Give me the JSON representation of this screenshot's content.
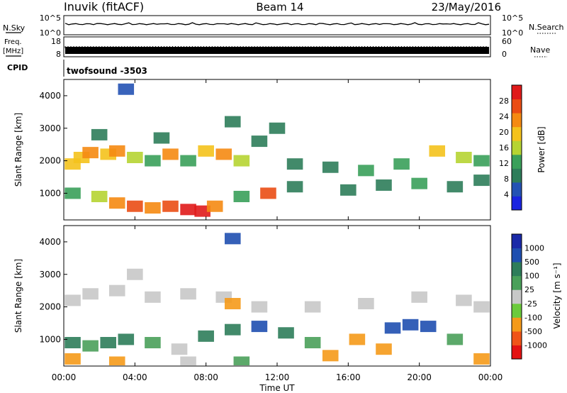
{
  "header": {
    "station": "Inuvik (fitACF)",
    "beam": "Beam 14",
    "date": "23/May/2016"
  },
  "summary": {
    "nsky": {
      "label": "N.Sky",
      "ticks": [
        "10^5",
        "10^0"
      ]
    },
    "nsearch": {
      "label": "N.Search",
      "ticks": [
        "10^5",
        "10^0"
      ]
    },
    "freq": {
      "label_line1": "Freq.",
      "label_line2": "[MHz]",
      "ticks": [
        "18",
        "8"
      ]
    },
    "nave": {
      "label": "Nave",
      "ticks": [
        "60",
        "0"
      ]
    },
    "cpid": {
      "label": "CPID",
      "value": "twofsound -3503"
    }
  },
  "colors": {
    "power_scale": [
      "#1a24e0",
      "#2452b4",
      "#2e7d5a",
      "#3aa05a",
      "#b6d432",
      "#f4c21c",
      "#f58a12",
      "#ea4d14",
      "#e01a1a"
    ],
    "velocity_scale": [
      "#e41212",
      "#f05418",
      "#f59a1a",
      "#6ccb3c",
      "#c8c8c8",
      "#4aa05a",
      "#2e7d5a",
      "#1f4fb0",
      "#1a2aa8"
    ]
  },
  "chart_data": [
    {
      "type": "heatmap",
      "panel": "power",
      "ylabel": "Slant Range [km]",
      "ylim": [
        180,
        4500
      ],
      "yticks": [
        "4000",
        "3000",
        "2000",
        "1000"
      ],
      "colorbar": {
        "label": "Power [dB]",
        "range": [
          0,
          32
        ],
        "ticks": [
          "28",
          "24",
          "20",
          "16",
          "12",
          "8",
          "4"
        ]
      },
      "cells": [
        {
          "x": 0.5,
          "y": 1900,
          "v": 18
        },
        {
          "x": 1.0,
          "y": 2100,
          "v": 20
        },
        {
          "x": 1.5,
          "y": 2250,
          "v": 22
        },
        {
          "x": 2.5,
          "y": 2200,
          "v": 18
        },
        {
          "x": 3.0,
          "y": 2300,
          "v": 24
        },
        {
          "x": 4.0,
          "y": 2100,
          "v": 16
        },
        {
          "x": 5.0,
          "y": 2000,
          "v": 12
        },
        {
          "x": 6.0,
          "y": 2200,
          "v": 22
        },
        {
          "x": 7.0,
          "y": 2000,
          "v": 12
        },
        {
          "x": 8.0,
          "y": 2300,
          "v": 20
        },
        {
          "x": 9.0,
          "y": 2200,
          "v": 24
        },
        {
          "x": 10.0,
          "y": 2000,
          "v": 16
        },
        {
          "x": 11.0,
          "y": 2600,
          "v": 10
        },
        {
          "x": 13.0,
          "y": 1900,
          "v": 8
        },
        {
          "x": 15.0,
          "y": 1800,
          "v": 8
        },
        {
          "x": 17.0,
          "y": 1700,
          "v": 12
        },
        {
          "x": 19.0,
          "y": 1900,
          "v": 14
        },
        {
          "x": 21.0,
          "y": 2300,
          "v": 18
        },
        {
          "x": 22.5,
          "y": 2100,
          "v": 16
        },
        {
          "x": 23.5,
          "y": 2000,
          "v": 12
        },
        {
          "x": 0.5,
          "y": 1000,
          "v": 14
        },
        {
          "x": 2.0,
          "y": 900,
          "v": 16
        },
        {
          "x": 3.0,
          "y": 700,
          "v": 22
        },
        {
          "x": 4.0,
          "y": 600,
          "v": 28
        },
        {
          "x": 5.0,
          "y": 550,
          "v": 24
        },
        {
          "x": 6.0,
          "y": 600,
          "v": 26
        },
        {
          "x": 7.0,
          "y": 500,
          "v": 30
        },
        {
          "x": 7.8,
          "y": 450,
          "v": 30
        },
        {
          "x": 8.5,
          "y": 600,
          "v": 24
        },
        {
          "x": 10.0,
          "y": 900,
          "v": 12
        },
        {
          "x": 11.5,
          "y": 1000,
          "v": 26
        },
        {
          "x": 13.0,
          "y": 1200,
          "v": 10
        },
        {
          "x": 16.0,
          "y": 1100,
          "v": 8
        },
        {
          "x": 18.0,
          "y": 1250,
          "v": 10
        },
        {
          "x": 20.0,
          "y": 1300,
          "v": 12
        },
        {
          "x": 22.0,
          "y": 1200,
          "v": 8
        },
        {
          "x": 23.5,
          "y": 1400,
          "v": 10
        },
        {
          "x": 2.0,
          "y": 2800,
          "v": 8
        },
        {
          "x": 5.5,
          "y": 2700,
          "v": 8
        },
        {
          "x": 9.5,
          "y": 3200,
          "v": 8
        },
        {
          "x": 3.5,
          "y": 4200,
          "v": 4
        },
        {
          "x": 12.0,
          "y": 3000,
          "v": 8
        }
      ]
    },
    {
      "type": "heatmap",
      "panel": "velocity",
      "ylabel": "Slant Range [km]",
      "ylim": [
        180,
        4500
      ],
      "yticks": [
        "4000",
        "3000",
        "2000",
        "1000"
      ],
      "xticks": [
        "00:00",
        "04:00",
        "08:00",
        "12:00",
        "16:00",
        "20:00",
        "00:00"
      ],
      "xlabel": "Time UT",
      "colorbar": {
        "label": "Velocity [m s⁻¹]",
        "ticks": [
          "1000",
          "500",
          "100",
          "25",
          "-25",
          "-100",
          "-500",
          "-1000"
        ]
      },
      "cells": [
        {
          "x": 0.5,
          "y": 2200,
          "v": 0
        },
        {
          "x": 1.5,
          "y": 2400,
          "v": 0
        },
        {
          "x": 3.0,
          "y": 2500,
          "v": 0
        },
        {
          "x": 5.0,
          "y": 2300,
          "v": 0
        },
        {
          "x": 7.0,
          "y": 2400,
          "v": 0
        },
        {
          "x": 9.0,
          "y": 2300,
          "v": 0
        },
        {
          "x": 11.0,
          "y": 2000,
          "v": 0
        },
        {
          "x": 14.0,
          "y": 2000,
          "v": 0
        },
        {
          "x": 17.0,
          "y": 2100,
          "v": 0
        },
        {
          "x": 20.0,
          "y": 2300,
          "v": 0
        },
        {
          "x": 22.5,
          "y": 2200,
          "v": 0
        },
        {
          "x": 23.5,
          "y": 2000,
          "v": 0
        },
        {
          "x": 0.5,
          "y": 900,
          "v": 150
        },
        {
          "x": 1.5,
          "y": 800,
          "v": 80
        },
        {
          "x": 2.5,
          "y": 900,
          "v": 200
        },
        {
          "x": 3.5,
          "y": 1000,
          "v": 150
        },
        {
          "x": 5.0,
          "y": 900,
          "v": 100
        },
        {
          "x": 6.5,
          "y": 700,
          "v": 0
        },
        {
          "x": 8.0,
          "y": 1100,
          "v": 200
        },
        {
          "x": 9.5,
          "y": 1300,
          "v": 300
        },
        {
          "x": 11.0,
          "y": 1400,
          "v": 600
        },
        {
          "x": 12.5,
          "y": 1200,
          "v": 250
        },
        {
          "x": 14.0,
          "y": 900,
          "v": 40
        },
        {
          "x": 16.5,
          "y": 1000,
          "v": -200
        },
        {
          "x": 18.5,
          "y": 1350,
          "v": 700
        },
        {
          "x": 19.5,
          "y": 1450,
          "v": 900
        },
        {
          "x": 20.5,
          "y": 1400,
          "v": 600
        },
        {
          "x": 22.0,
          "y": 1000,
          "v": 30
        },
        {
          "x": 0.5,
          "y": 400,
          "v": -200
        },
        {
          "x": 3.0,
          "y": 300,
          "v": -300
        },
        {
          "x": 7.0,
          "y": 300,
          "v": 0
        },
        {
          "x": 10.0,
          "y": 300,
          "v": 60
        },
        {
          "x": 15.0,
          "y": 500,
          "v": -150
        },
        {
          "x": 18.0,
          "y": 700,
          "v": -400
        },
        {
          "x": 23.5,
          "y": 400,
          "v": -250
        },
        {
          "x": 9.5,
          "y": 2100,
          "v": -200
        },
        {
          "x": 4.0,
          "y": 3000,
          "v": 0
        },
        {
          "x": 9.5,
          "y": 4100,
          "v": 800
        }
      ]
    }
  ]
}
